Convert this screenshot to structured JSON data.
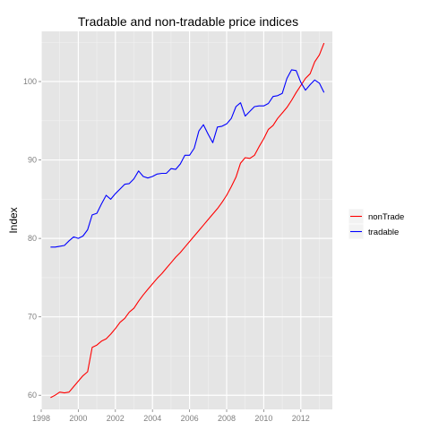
{
  "chart_data": {
    "type": "line",
    "title": "Tradable and non-tradable price indices",
    "xlabel": "",
    "ylabel": "Index",
    "xlim": [
      1998.0,
      2013.7
    ],
    "ylim": [
      58.2,
      106.4
    ],
    "x_ticks": [
      1998,
      2000,
      2002,
      2004,
      2006,
      2008,
      2010,
      2012
    ],
    "x_tick_labels": [
      "1998",
      "2000",
      "2002",
      "2004",
      "2006",
      "2008",
      "2010",
      "2012"
    ],
    "y_ticks": [
      60,
      70,
      80,
      90,
      100
    ],
    "y_tick_labels": [
      "60",
      "70",
      "80",
      "90",
      "100"
    ],
    "grid": true,
    "legend_position": "right",
    "series": [
      {
        "name": "nonTrade",
        "color": "#ff0000",
        "x": [
          1998.5,
          1998.75,
          1999.0,
          1999.25,
          1999.5,
          1999.75,
          2000.0,
          2000.25,
          2000.5,
          2000.75,
          2001.0,
          2001.25,
          2001.5,
          2001.75,
          2002.0,
          2002.25,
          2002.5,
          2002.75,
          2003.0,
          2003.25,
          2003.5,
          2003.75,
          2004.0,
          2004.25,
          2004.5,
          2004.75,
          2005.0,
          2005.25,
          2005.5,
          2005.75,
          2006.0,
          2006.25,
          2006.5,
          2006.75,
          2007.0,
          2007.25,
          2007.5,
          2007.75,
          2008.0,
          2008.25,
          2008.5,
          2008.75,
          2009.0,
          2009.25,
          2009.5,
          2009.75,
          2010.0,
          2010.25,
          2010.5,
          2010.75,
          2011.0,
          2011.25,
          2011.5,
          2011.75,
          2012.0,
          2012.25,
          2012.5,
          2012.75,
          2013.0,
          2013.25
        ],
        "y": [
          59.7,
          60.0,
          60.4,
          60.3,
          60.4,
          61.1,
          61.8,
          62.5,
          63.0,
          66.1,
          66.4,
          66.9,
          67.2,
          67.8,
          68.5,
          69.3,
          69.8,
          70.6,
          71.1,
          72.0,
          72.8,
          73.5,
          74.2,
          74.9,
          75.5,
          76.2,
          76.9,
          77.6,
          78.2,
          78.9,
          79.6,
          80.3,
          81.0,
          81.7,
          82.4,
          83.1,
          83.8,
          84.6,
          85.5,
          86.6,
          87.8,
          89.6,
          90.3,
          90.2,
          90.6,
          91.7,
          92.7,
          93.9,
          94.4,
          95.3,
          96.0,
          96.7,
          97.6,
          98.6,
          99.5,
          100.4,
          101.0,
          102.5,
          103.4,
          104.9
        ]
      },
      {
        "name": "tradable",
        "color": "#0000ff",
        "x": [
          1998.5,
          1998.75,
          1999.0,
          1999.25,
          1999.5,
          1999.75,
          2000.0,
          2000.25,
          2000.5,
          2000.75,
          2001.0,
          2001.25,
          2001.5,
          2001.75,
          2002.0,
          2002.25,
          2002.5,
          2002.75,
          2003.0,
          2003.25,
          2003.5,
          2003.75,
          2004.0,
          2004.25,
          2004.5,
          2004.75,
          2005.0,
          2005.25,
          2005.5,
          2005.75,
          2006.0,
          2006.25,
          2006.5,
          2006.75,
          2007.0,
          2007.25,
          2007.5,
          2007.75,
          2008.0,
          2008.25,
          2008.5,
          2008.75,
          2009.0,
          2009.25,
          2009.5,
          2009.75,
          2010.0,
          2010.25,
          2010.5,
          2010.75,
          2011.0,
          2011.25,
          2011.5,
          2011.75,
          2012.0,
          2012.25,
          2012.5,
          2012.75,
          2013.0,
          2013.25
        ],
        "y": [
          78.9,
          78.9,
          79.0,
          79.1,
          79.7,
          80.2,
          80.0,
          80.3,
          81.1,
          83.0,
          83.2,
          84.4,
          85.5,
          85.0,
          85.7,
          86.3,
          86.9,
          87.0,
          87.6,
          88.6,
          87.9,
          87.7,
          87.9,
          88.2,
          88.3,
          88.3,
          88.9,
          88.8,
          89.5,
          90.6,
          90.6,
          91.5,
          93.7,
          94.5,
          93.3,
          92.2,
          94.2,
          94.3,
          94.6,
          95.3,
          96.8,
          97.3,
          95.6,
          96.2,
          96.8,
          96.9,
          96.9,
          97.2,
          98.1,
          98.2,
          98.5,
          100.4,
          101.5,
          101.4,
          99.9,
          98.9,
          99.6,
          100.2,
          99.8,
          98.6
        ]
      }
    ]
  }
}
